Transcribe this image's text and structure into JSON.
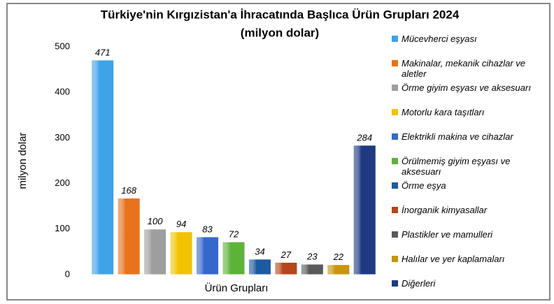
{
  "chart_data": {
    "type": "bar",
    "title": "Türkiye'nin Kırgızistan'a İhracatında Başlıca Ürün Grupları 2024",
    "subtitle": "(milyon dolar)",
    "x_label": "Ürün Grupları",
    "y_label": "milyon dolar",
    "categories": [
      "Mücevherci eşyası",
      "Makinalar, mekanik cihazlar ve aletler",
      "Örme giyim eşyası ve aksesuarı",
      "Motorlu kara taşıtları",
      "Elektrikli makina ve cihazlar",
      "Örülmemiş giyim eşyası ve aksesuarı",
      "Örme eşya",
      "İnorganik kimyasallar",
      "Plastikler ve mamulleri",
      "Halılar ve yer kaplamaları",
      "Diğerleri"
    ],
    "values": [
      471,
      168,
      100,
      94,
      83,
      72,
      34,
      27,
      23,
      22,
      284
    ],
    "colors": [
      "#3fa3e8",
      "#e8731c",
      "#9e9e9e",
      "#f2c200",
      "#3468cc",
      "#5db33a",
      "#1e5aa0",
      "#b5451b",
      "#5a5a5a",
      "#c8960c",
      "#1f3a80"
    ],
    "ylim": [
      0,
      500
    ],
    "yticks": [
      0,
      100,
      200,
      300,
      400,
      500
    ],
    "grid": false,
    "legend": "right"
  }
}
